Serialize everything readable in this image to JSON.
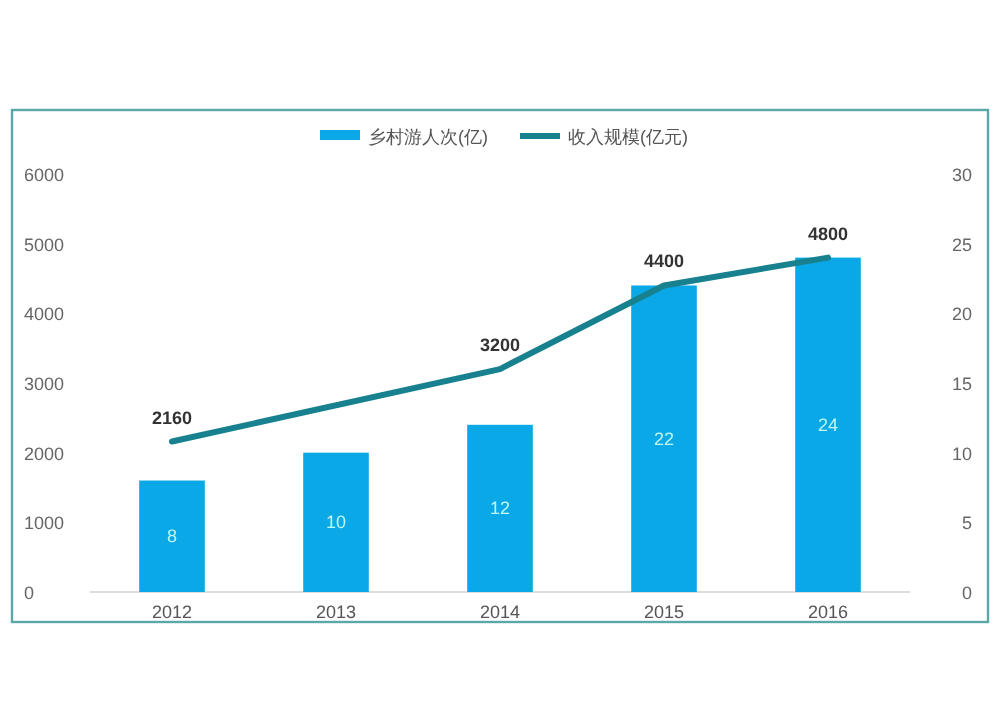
{
  "chart_data": {
    "type": "bar",
    "categories": [
      "2012",
      "2013",
      "2014",
      "2015",
      "2016"
    ],
    "series": [
      {
        "name": "乡村游人次(亿)",
        "axis": "y2",
        "color": "#0aa8e6",
        "values": [
          8,
          10,
          12,
          22,
          24
        ]
      },
      {
        "name": "收入规模(亿元)",
        "type": "line",
        "color": "#17818f",
        "values": [
          2160,
          null,
          3200,
          4400,
          4800
        ]
      }
    ],
    "ylim": [
      0,
      6000
    ],
    "yticks": [
      0,
      1000,
      2000,
      3000,
      4000,
      5000,
      6000
    ],
    "y2lim": [
      0,
      30
    ],
    "y2ticks": [
      0,
      5,
      10,
      15,
      20,
      25,
      30
    ],
    "data_labels": true,
    "legend": "top",
    "grid": false,
    "marker": "none"
  }
}
